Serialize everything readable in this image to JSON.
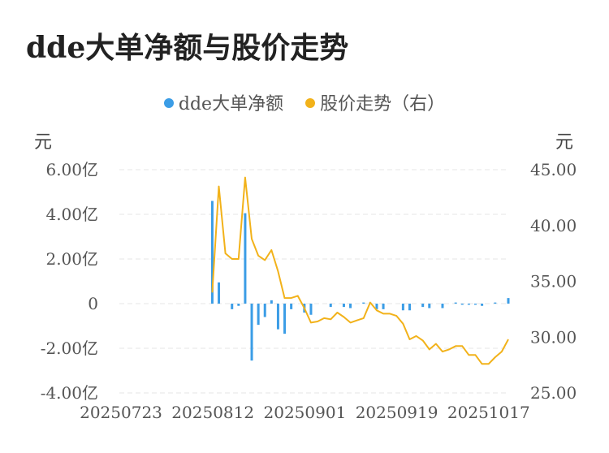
{
  "title": "dde大单净额与股价走势",
  "legend": {
    "left_label": "dde大单净额",
    "right_label": "股价走势（右）"
  },
  "colors": {
    "bar": "#3b9de6",
    "line": "#f2b21a",
    "grid": "#e5e5e5"
  },
  "chart_data": {
    "type": "bar+line",
    "title": "dde大单净额与股价走势",
    "y_left": {
      "unit": "元",
      "ticks": [
        "6.00亿",
        "4.00亿",
        "2.00亿",
        "0",
        "-2.00亿",
        "-4.00亿"
      ],
      "range": [
        -4.0,
        6.0
      ],
      "unit_scale": "亿"
    },
    "y_right": {
      "unit": "元",
      "ticks": [
        "45.00",
        "40.00",
        "35.00",
        "30.00",
        "25.00"
      ],
      "range": [
        25.0,
        45.0
      ]
    },
    "x_ticks": [
      "20250723",
      "20250812",
      "20250901",
      "20250919",
      "20251017"
    ],
    "grid": true,
    "legend_position": "top",
    "n_points": 60,
    "series": [
      {
        "name": "dde大单净额",
        "axis": "left",
        "type": "bar",
        "values_yi": [
          null,
          null,
          null,
          null,
          null,
          null,
          null,
          null,
          null,
          null,
          null,
          null,
          null,
          null,
          4.6,
          0.95,
          0,
          -0.25,
          -0.1,
          4.05,
          -2.55,
          -0.95,
          -0.6,
          0.15,
          -1.15,
          -1.35,
          -0.25,
          0,
          -0.4,
          -0.5,
          0,
          0,
          -0.15,
          0,
          -0.15,
          -0.2,
          0,
          0.05,
          0.05,
          -0.25,
          -0.25,
          0,
          0,
          -0.3,
          -0.3,
          0,
          -0.15,
          -0.2,
          0,
          -0.2,
          0,
          0.05,
          -0.05,
          -0.05,
          -0.05,
          -0.1,
          0,
          0.05,
          0,
          0.25
        ]
      },
      {
        "name": "股价走势",
        "axis": "right",
        "type": "line",
        "values": [
          null,
          null,
          null,
          null,
          null,
          null,
          null,
          null,
          null,
          null,
          null,
          null,
          null,
          null,
          34.0,
          43.5,
          37.5,
          37.0,
          37.0,
          44.3,
          38.8,
          37.3,
          36.9,
          37.8,
          35.9,
          33.5,
          33.5,
          33.7,
          32.6,
          31.3,
          31.4,
          31.7,
          31.6,
          32.2,
          31.8,
          31.3,
          31.5,
          31.7,
          33.1,
          32.4,
          32.1,
          32.1,
          31.9,
          31.2,
          29.8,
          30.1,
          29.7,
          28.9,
          29.4,
          28.7,
          28.9,
          29.2,
          29.2,
          28.4,
          28.4,
          27.6,
          27.6,
          28.2,
          28.7,
          29.8
        ]
      }
    ]
  }
}
